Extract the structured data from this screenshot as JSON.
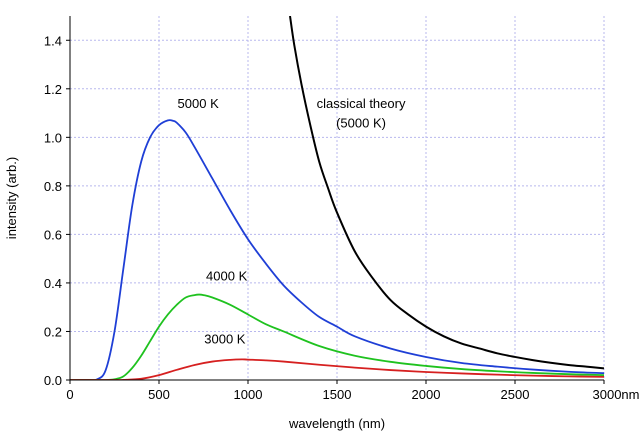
{
  "chart_data": {
    "type": "line",
    "xlabel": "wavelength (nm)",
    "ylabel": "intensity (arb.)",
    "xlim": [
      0,
      3000
    ],
    "ylim": [
      0,
      1.5
    ],
    "x_ticks": [
      0,
      500,
      1000,
      1500,
      2000,
      2500,
      3000
    ],
    "x_tick_labels": [
      "0",
      "500",
      "1000",
      "1500",
      "2000",
      "2500",
      "3000nm"
    ],
    "y_ticks": [
      0.0,
      0.2,
      0.4,
      0.6,
      0.8,
      1.0,
      1.2,
      1.4
    ],
    "y_tick_labels": [
      "0.0",
      "0.2",
      "0.4",
      "0.6",
      "0.8",
      "1.0",
      "1.2",
      "1.4"
    ],
    "grid": true,
    "colors": {
      "5000 K": "#1f3fd6",
      "4000 K": "#1fc21f",
      "3000 K": "#d62020",
      "classical": "#000000",
      "grid": "#b8b8ee"
    },
    "series": [
      {
        "key": "5000 K",
        "x": [
          0,
          100,
          150,
          200,
          250,
          300,
          350,
          400,
          450,
          500,
          550,
          580,
          600,
          650,
          700,
          800,
          900,
          1000,
          1100,
          1200,
          1300,
          1400,
          1500,
          1600,
          1800,
          2000,
          2200,
          2400,
          2600,
          2800,
          3000
        ],
        "values": [
          0,
          0,
          0.002,
          0.04,
          0.2,
          0.46,
          0.72,
          0.9,
          1.0,
          1.05,
          1.07,
          1.068,
          1.06,
          1.02,
          0.96,
          0.83,
          0.7,
          0.58,
          0.48,
          0.39,
          0.32,
          0.26,
          0.22,
          0.18,
          0.13,
          0.095,
          0.07,
          0.055,
          0.043,
          0.034,
          0.028
        ]
      },
      {
        "key": "4000 K",
        "x": [
          0,
          200,
          250,
          300,
          350,
          400,
          450,
          500,
          550,
          600,
          650,
          700,
          725,
          750,
          800,
          900,
          1000,
          1100,
          1200,
          1400,
          1600,
          1800,
          2000,
          2200,
          2400,
          2600,
          2800,
          3000
        ],
        "values": [
          0,
          0,
          0.003,
          0.015,
          0.05,
          0.1,
          0.16,
          0.22,
          0.27,
          0.31,
          0.34,
          0.35,
          0.352,
          0.35,
          0.34,
          0.31,
          0.27,
          0.23,
          0.2,
          0.14,
          0.1,
          0.075,
          0.058,
          0.045,
          0.036,
          0.029,
          0.024,
          0.02
        ]
      },
      {
        "key": "3000 K",
        "x": [
          0,
          250,
          300,
          400,
          500,
          600,
          700,
          800,
          900,
          966,
          1000,
          1100,
          1200,
          1400,
          1600,
          1800,
          2000,
          2200,
          2400,
          2600,
          2800,
          3000
        ],
        "values": [
          0,
          0,
          0.0004,
          0.005,
          0.02,
          0.042,
          0.062,
          0.076,
          0.083,
          0.085,
          0.084,
          0.081,
          0.076,
          0.063,
          0.051,
          0.041,
          0.033,
          0.027,
          0.022,
          0.018,
          0.015,
          0.013
        ]
      },
      {
        "key": "classical",
        "x": [
          1236,
          1260,
          1300,
          1350,
          1400,
          1450,
          1500,
          1600,
          1700,
          1800,
          1900,
          2000,
          2100,
          2200,
          2300,
          2400,
          2500,
          2600,
          2700,
          2800,
          2900,
          3000
        ],
        "values": [
          1.5,
          1.38,
          1.22,
          1.05,
          0.9,
          0.79,
          0.69,
          0.53,
          0.42,
          0.33,
          0.27,
          0.22,
          0.18,
          0.15,
          0.13,
          0.11,
          0.095,
          0.082,
          0.071,
          0.062,
          0.055,
          0.048
        ]
      }
    ],
    "annotations": [
      {
        "key": "5000 K",
        "text": "5000 K",
        "x": 720,
        "y": 1.12
      },
      {
        "key": "4000 K",
        "text": "4000 K",
        "x": 880,
        "y": 0.41
      },
      {
        "key": "3000 K",
        "text": "3000 K",
        "x": 870,
        "y": 0.15
      },
      {
        "key": "classical-1",
        "text": "classical theory",
        "x": 1635,
        "y": 1.12
      },
      {
        "key": "classical-2",
        "text": "(5000 K)",
        "x": 1635,
        "y": 1.04
      }
    ]
  }
}
